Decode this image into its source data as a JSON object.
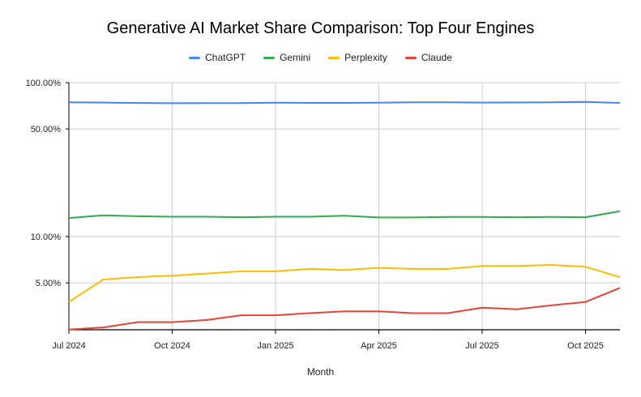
{
  "chart_data": {
    "type": "line",
    "title": "Generative AI Market Share Comparison: Top Four Engines",
    "xlabel": "Month",
    "ylabel": "",
    "y_scale": "log",
    "ylim": [
      2.48,
      100
    ],
    "y_ticks": [
      100,
      50,
      10,
      5
    ],
    "y_tick_labels": [
      "100.00%",
      "50.00%",
      "10.00%",
      "5.00%"
    ],
    "x": [
      "Jul 2024",
      "Aug 2024",
      "Sep 2024",
      "Oct 2024",
      "Nov 2024",
      "Dec 2024",
      "Jan 2025",
      "Feb 2025",
      "Mar 2025",
      "Apr 2025",
      "May 2025",
      "Jun 2025",
      "Jul 2025",
      "Aug 2025",
      "Sep 2025",
      "Oct 2025",
      "Nov 2025"
    ],
    "x_tick_labels": [
      "Jul 2024",
      "Oct 2024",
      "Jan 2025",
      "Apr 2025",
      "Jul 2025",
      "Oct 2025"
    ],
    "grid": true,
    "legend_position": "top",
    "series": [
      {
        "name": "ChatGPT",
        "color": "#4285f4",
        "values": [
          74.5,
          74.2,
          73.8,
          73.5,
          73.7,
          73.7,
          74.0,
          73.9,
          73.9,
          74.1,
          74.6,
          74.5,
          74.2,
          74.3,
          74.5,
          74.9,
          73.9
        ]
      },
      {
        "name": "Gemini",
        "color": "#34a853",
        "values": [
          13.2,
          13.75,
          13.55,
          13.45,
          13.45,
          13.35,
          13.45,
          13.45,
          13.65,
          13.3,
          13.3,
          13.4,
          13.4,
          13.35,
          13.4,
          13.35,
          14.6
        ]
      },
      {
        "name": "Perplexity",
        "color": "#fbbc04",
        "values": [
          3.76,
          5.26,
          5.45,
          5.57,
          5.75,
          5.94,
          5.94,
          6.16,
          6.06,
          6.26,
          6.16,
          6.16,
          6.44,
          6.44,
          6.54,
          6.36,
          5.45
        ]
      },
      {
        "name": "Claude",
        "color": "#ea4335",
        "values": [
          2.49,
          2.57,
          2.78,
          2.78,
          2.87,
          3.08,
          3.08,
          3.18,
          3.27,
          3.27,
          3.18,
          3.18,
          3.45,
          3.37,
          3.57,
          3.76,
          4.64
        ]
      }
    ]
  }
}
